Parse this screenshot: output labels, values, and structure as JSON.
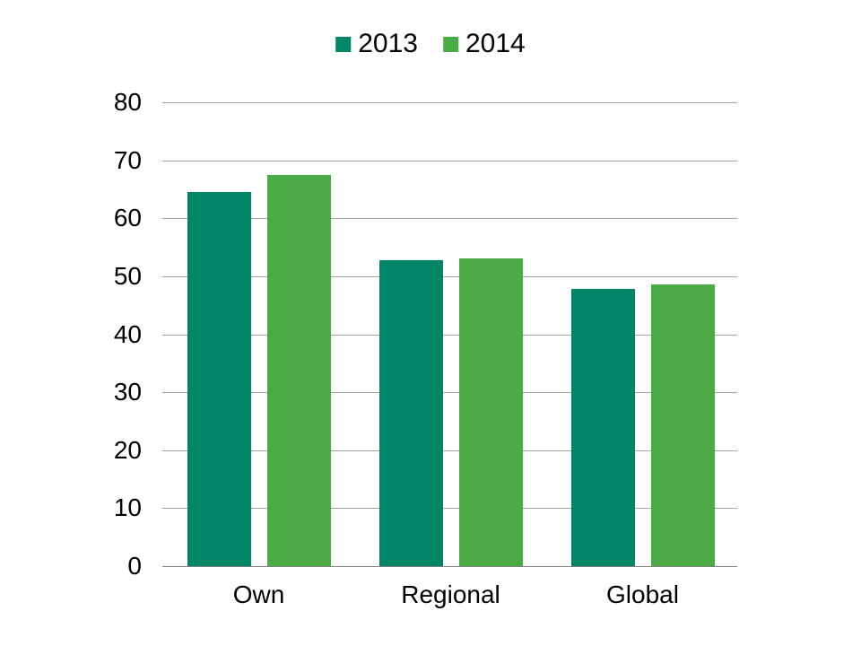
{
  "chart_data": {
    "type": "bar",
    "title": "",
    "xlabel": "",
    "ylabel": "",
    "categories": [
      "Own",
      "Regional",
      "Global"
    ],
    "series": [
      {
        "name": "2013",
        "color": "#008566",
        "values": [
          64.5,
          52.8,
          47.8
        ]
      },
      {
        "name": "2014",
        "color": "#4BAC46",
        "values": [
          67.5,
          53.1,
          48.6
        ]
      }
    ],
    "ylim": [
      0,
      80
    ],
    "yticks": [
      0,
      10,
      20,
      30,
      40,
      50,
      60,
      70,
      80
    ],
    "grid": true,
    "legend_position": "top-center"
  },
  "colors": {
    "background": "#FFFFFF",
    "gridline": "#A3A3A3",
    "baseline": "#7F7F7F",
    "text": "#000000"
  }
}
